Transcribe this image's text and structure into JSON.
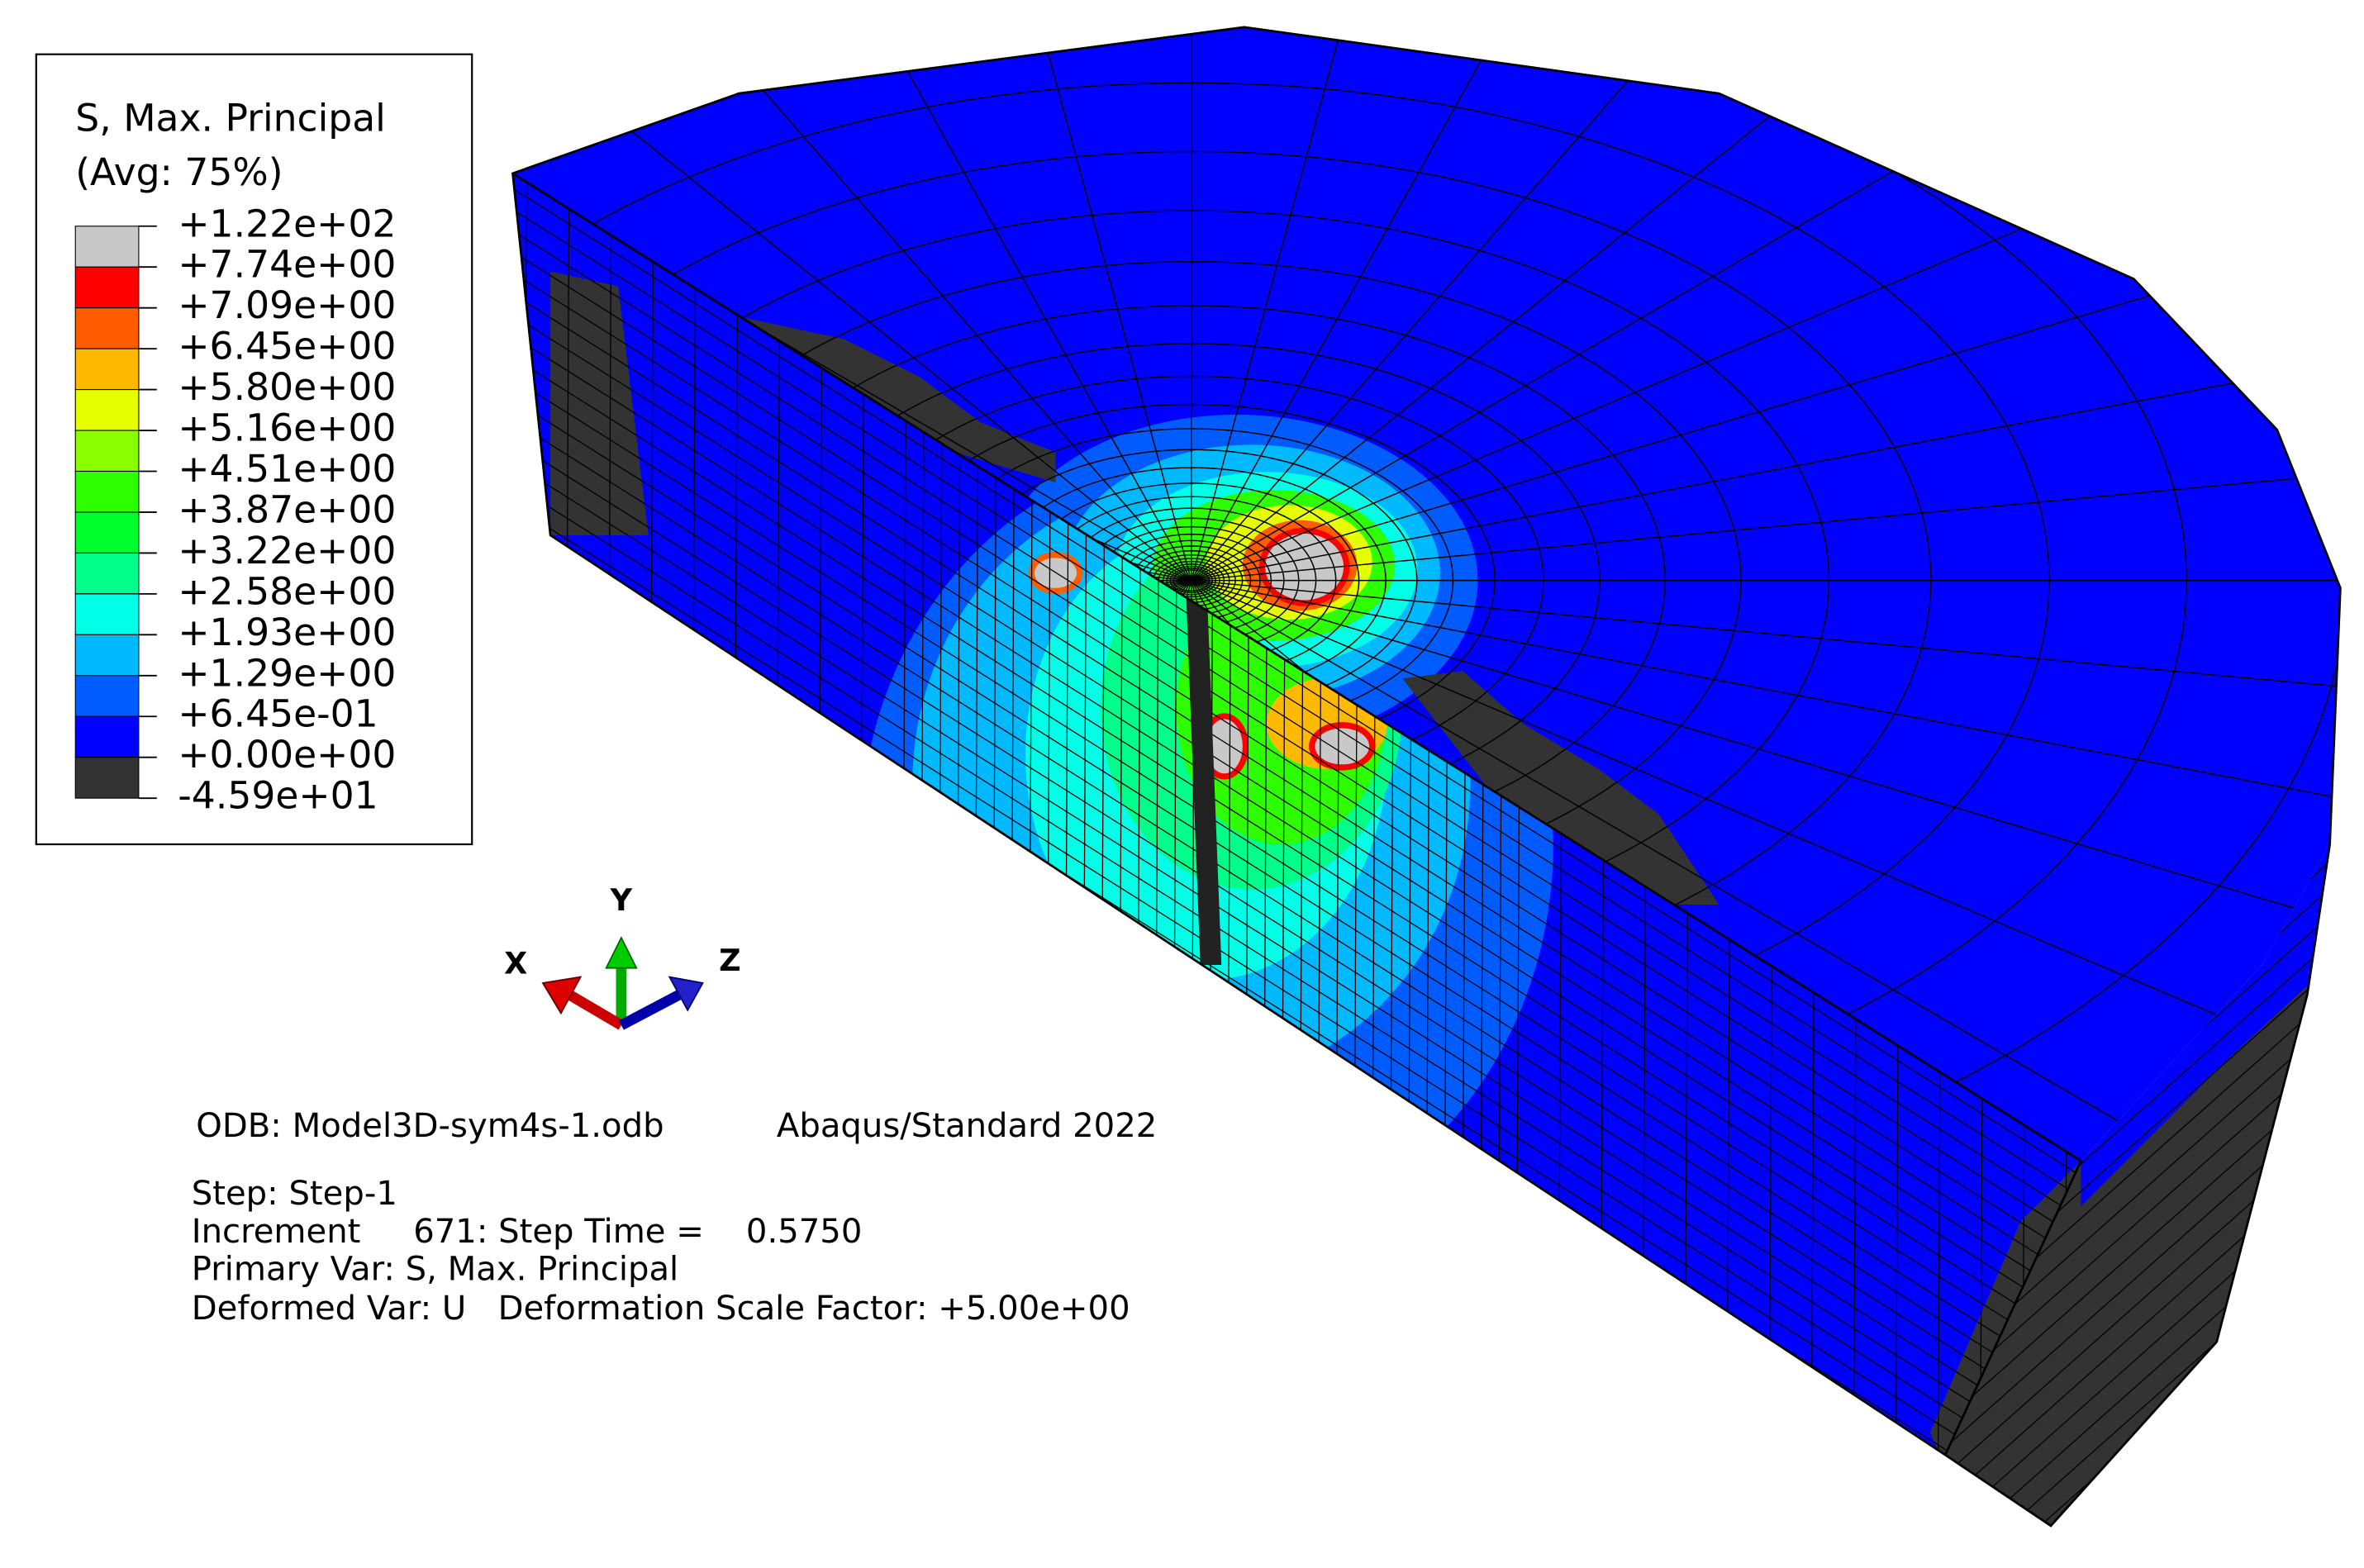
{
  "legend": {
    "title": "S, Max. Principal",
    "subtitle": "(Avg: 75%)",
    "labels": [
      "+1.22e+02",
      "+7.74e+00",
      "+7.09e+00",
      "+6.45e+00",
      "+5.80e+00",
      "+5.16e+00",
      "+4.51e+00",
      "+3.87e+00",
      "+3.22e+00",
      "+2.58e+00",
      "+1.93e+00",
      "+1.29e+00",
      "+6.45e-01",
      "+0.00e+00",
      "-4.59e+01"
    ],
    "colors": [
      "#c8c8c8",
      "#ff0000",
      "#ff5c00",
      "#ffb900",
      "#e6ff00",
      "#8aff00",
      "#2eff00",
      "#00ff2e",
      "#00ff8a",
      "#00ffe6",
      "#00b9ff",
      "#005cff",
      "#0000ff",
      "#333333"
    ]
  },
  "triad": {
    "x": "X",
    "y": "Y",
    "z": "Z"
  },
  "info": {
    "odb": "ODB: Model3D-sym4s-1.odb",
    "solver": "Abaqus/Standard 2022",
    "step": "Step: Step-1",
    "increment": "Increment     671: Step Time =    0.5750",
    "primary_var": "Primary Var: S, Max. Principal",
    "deformed_var": "Deformed Var: U   Deformation Scale Factor: +5.00e+00"
  }
}
